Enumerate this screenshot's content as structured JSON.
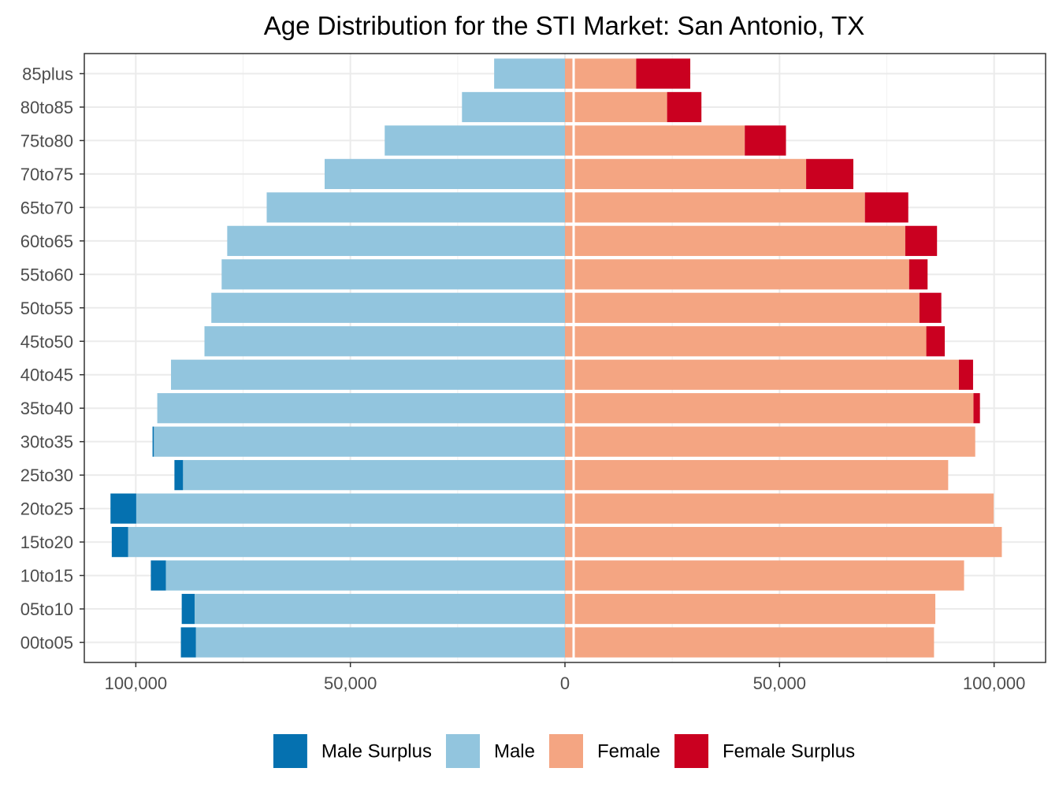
{
  "chart_data": {
    "type": "bar",
    "orientation": "horizontal",
    "layout": "population-pyramid",
    "title": "Age Distribution for the STI Market: San Antonio, TX",
    "xlabel": "",
    "ylabel": "",
    "xlim": [
      -112000,
      112000
    ],
    "x_ticks": [
      -100000,
      -50000,
      0,
      50000,
      100000
    ],
    "x_tick_labels": [
      "100,000",
      "50,000",
      "0",
      "50,000",
      "100,000"
    ],
    "grid": true,
    "legend_position": "bottom",
    "categories": [
      "00to05",
      "05to10",
      "10to15",
      "15to20",
      "20to25",
      "25to30",
      "30to35",
      "35to40",
      "40to45",
      "45to50",
      "50to55",
      "55to60",
      "60to65",
      "65to70",
      "70to75",
      "75to80",
      "80to85",
      "85plus"
    ],
    "series": [
      {
        "name": "Male Surplus",
        "color": "#0571b0",
        "side": "left",
        "stacked_on": "Male",
        "values": [
          3500,
          3000,
          3500,
          3800,
          6000,
          2000,
          300,
          0,
          0,
          0,
          0,
          0,
          0,
          0,
          0,
          0,
          0,
          0
        ]
      },
      {
        "name": "Male",
        "color": "#92c5de",
        "side": "left",
        "values": [
          86000,
          86300,
          93000,
          101800,
          99900,
          89000,
          95800,
          95000,
          91800,
          84000,
          82400,
          80000,
          78700,
          69500,
          56000,
          42000,
          24000,
          16500
        ]
      },
      {
        "name": "Female",
        "color": "#f4a582",
        "side": "right",
        "values": [
          86000,
          86300,
          93000,
          101800,
          99900,
          89300,
          95600,
          95200,
          91800,
          84200,
          82600,
          80200,
          79300,
          69900,
          56200,
          41900,
          23800,
          16600
        ]
      },
      {
        "name": "Female Surplus",
        "color": "#ca0020",
        "side": "right",
        "stacked_on": "Female",
        "values": [
          0,
          0,
          0,
          0,
          0,
          0,
          0,
          1500,
          3300,
          4300,
          5100,
          4300,
          7400,
          10100,
          11000,
          9600,
          8000,
          12600
        ]
      }
    ]
  }
}
